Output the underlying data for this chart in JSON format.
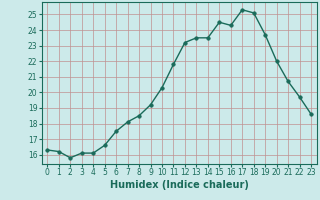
{
  "x": [
    0,
    1,
    2,
    3,
    4,
    5,
    6,
    7,
    8,
    9,
    10,
    11,
    12,
    13,
    14,
    15,
    16,
    17,
    18,
    19,
    20,
    21,
    22,
    23
  ],
  "y": [
    16.3,
    16.2,
    15.8,
    16.1,
    16.1,
    16.6,
    17.5,
    18.1,
    18.5,
    19.2,
    20.3,
    21.8,
    23.2,
    23.5,
    23.5,
    24.5,
    24.3,
    25.3,
    25.1,
    23.7,
    22.0,
    20.7,
    19.7,
    18.6
  ],
  "line_color": "#1a6b5a",
  "marker_color": "#1a6b5a",
  "bg_color": "#cceaea",
  "grid_color": "#c09090",
  "xlabel": "Humidex (Indice chaleur)",
  "ylim": [
    15.4,
    25.8
  ],
  "xlim": [
    -0.5,
    23.5
  ],
  "yticks": [
    16,
    17,
    18,
    19,
    20,
    21,
    22,
    23,
    24,
    25
  ],
  "xticks": [
    0,
    1,
    2,
    3,
    4,
    5,
    6,
    7,
    8,
    9,
    10,
    11,
    12,
    13,
    14,
    15,
    16,
    17,
    18,
    19,
    20,
    21,
    22,
    23
  ],
  "tick_fontsize": 5.5,
  "label_fontsize": 7,
  "linewidth": 1.0,
  "markersize": 2.5
}
